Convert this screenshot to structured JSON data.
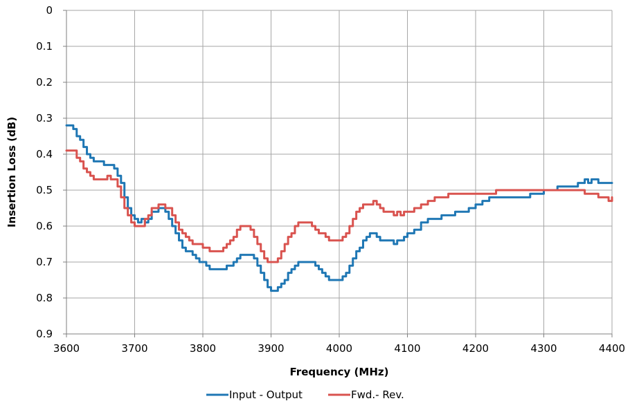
{
  "chart_data": {
    "type": "line",
    "title": "",
    "xlabel": "Frequency (MHz)",
    "ylabel": "Insertion Loss (dB)",
    "xlim": [
      3600,
      4400
    ],
    "ylim": [
      0,
      0.9
    ],
    "y_inverted": true,
    "grid": true,
    "legend_position": "bottom",
    "x_ticks": [
      "3600",
      "3700",
      "3800",
      "3900",
      "4000",
      "4100",
      "4200",
      "4300",
      "4400"
    ],
    "y_ticks": [
      "0",
      "0.1",
      "0.2",
      "0.3",
      "0.4",
      "0.5",
      "0.6",
      "0.7",
      "0.8",
      "0.9"
    ],
    "series": [
      {
        "name": "Input - Output",
        "color": "#1f77b4",
        "x": [
          3600,
          3605,
          3610,
          3615,
          3620,
          3625,
          3630,
          3635,
          3640,
          3645,
          3650,
          3655,
          3660,
          3665,
          3670,
          3675,
          3680,
          3685,
          3690,
          3695,
          3700,
          3705,
          3710,
          3715,
          3720,
          3725,
          3730,
          3735,
          3740,
          3745,
          3750,
          3755,
          3760,
          3765,
          3770,
          3775,
          3780,
          3785,
          3790,
          3795,
          3800,
          3805,
          3810,
          3815,
          3820,
          3825,
          3830,
          3835,
          3840,
          3845,
          3850,
          3855,
          3860,
          3865,
          3870,
          3875,
          3880,
          3885,
          3890,
          3895,
          3900,
          3905,
          3910,
          3915,
          3920,
          3925,
          3930,
          3935,
          3940,
          3945,
          3950,
          3955,
          3960,
          3965,
          3970,
          3975,
          3980,
          3985,
          3990,
          3995,
          4000,
          4005,
          4010,
          4015,
          4020,
          4025,
          4030,
          4035,
          4040,
          4045,
          4050,
          4055,
          4060,
          4065,
          4070,
          4075,
          4080,
          4085,
          4090,
          4095,
          4100,
          4110,
          4120,
          4130,
          4140,
          4150,
          4160,
          4170,
          4180,
          4190,
          4200,
          4210,
          4220,
          4230,
          4240,
          4250,
          4260,
          4270,
          4280,
          4290,
          4300,
          4310,
          4320,
          4330,
          4340,
          4350,
          4355,
          4360,
          4365,
          4370,
          4380,
          4390,
          4400
        ],
        "values": [
          0.32,
          0.32,
          0.33,
          0.35,
          0.36,
          0.38,
          0.4,
          0.41,
          0.42,
          0.42,
          0.42,
          0.43,
          0.43,
          0.43,
          0.44,
          0.46,
          0.48,
          0.52,
          0.55,
          0.57,
          0.58,
          0.59,
          0.58,
          0.59,
          0.58,
          0.56,
          0.56,
          0.55,
          0.55,
          0.56,
          0.58,
          0.6,
          0.62,
          0.64,
          0.66,
          0.67,
          0.67,
          0.68,
          0.69,
          0.7,
          0.7,
          0.71,
          0.72,
          0.72,
          0.72,
          0.72,
          0.72,
          0.71,
          0.71,
          0.7,
          0.69,
          0.68,
          0.68,
          0.68,
          0.68,
          0.69,
          0.71,
          0.73,
          0.75,
          0.77,
          0.78,
          0.78,
          0.77,
          0.76,
          0.75,
          0.73,
          0.72,
          0.71,
          0.7,
          0.7,
          0.7,
          0.7,
          0.7,
          0.71,
          0.72,
          0.73,
          0.74,
          0.75,
          0.75,
          0.75,
          0.75,
          0.74,
          0.73,
          0.71,
          0.69,
          0.67,
          0.66,
          0.64,
          0.63,
          0.62,
          0.62,
          0.63,
          0.64,
          0.64,
          0.64,
          0.64,
          0.65,
          0.64,
          0.64,
          0.63,
          0.62,
          0.61,
          0.59,
          0.58,
          0.58,
          0.57,
          0.57,
          0.56,
          0.56,
          0.55,
          0.54,
          0.53,
          0.52,
          0.52,
          0.52,
          0.52,
          0.52,
          0.52,
          0.51,
          0.51,
          0.5,
          0.5,
          0.49,
          0.49,
          0.49,
          0.48,
          0.48,
          0.47,
          0.48,
          0.47,
          0.48,
          0.48,
          0.48
        ]
      },
      {
        "name": "Fwd.- Rev.",
        "color": "#d9534f",
        "x": [
          3600,
          3605,
          3610,
          3615,
          3620,
          3625,
          3630,
          3635,
          3640,
          3645,
          3650,
          3655,
          3660,
          3665,
          3670,
          3675,
          3680,
          3685,
          3690,
          3695,
          3700,
          3705,
          3710,
          3715,
          3720,
          3725,
          3730,
          3735,
          3740,
          3745,
          3750,
          3755,
          3760,
          3765,
          3770,
          3775,
          3780,
          3785,
          3790,
          3795,
          3800,
          3805,
          3810,
          3815,
          3820,
          3825,
          3830,
          3835,
          3840,
          3845,
          3850,
          3855,
          3860,
          3865,
          3870,
          3875,
          3880,
          3885,
          3890,
          3895,
          3900,
          3905,
          3910,
          3915,
          3920,
          3925,
          3930,
          3935,
          3940,
          3945,
          3950,
          3955,
          3960,
          3965,
          3970,
          3975,
          3980,
          3985,
          3990,
          3995,
          4000,
          4005,
          4010,
          4015,
          4020,
          4025,
          4030,
          4035,
          4040,
          4045,
          4050,
          4055,
          4060,
          4065,
          4070,
          4075,
          4080,
          4085,
          4090,
          4095,
          4100,
          4110,
          4120,
          4130,
          4140,
          4150,
          4160,
          4170,
          4180,
          4190,
          4200,
          4210,
          4220,
          4230,
          4240,
          4250,
          4260,
          4270,
          4280,
          4290,
          4300,
          4310,
          4320,
          4330,
          4340,
          4350,
          4360,
          4370,
          4380,
          4385,
          4390,
          4395,
          4400
        ],
        "values": [
          0.39,
          0.39,
          0.39,
          0.41,
          0.42,
          0.44,
          0.45,
          0.46,
          0.47,
          0.47,
          0.47,
          0.47,
          0.46,
          0.47,
          0.47,
          0.49,
          0.52,
          0.55,
          0.57,
          0.59,
          0.6,
          0.6,
          0.6,
          0.58,
          0.57,
          0.55,
          0.55,
          0.54,
          0.54,
          0.55,
          0.55,
          0.57,
          0.59,
          0.61,
          0.62,
          0.63,
          0.64,
          0.65,
          0.65,
          0.65,
          0.66,
          0.66,
          0.67,
          0.67,
          0.67,
          0.67,
          0.66,
          0.65,
          0.64,
          0.63,
          0.61,
          0.6,
          0.6,
          0.6,
          0.61,
          0.63,
          0.65,
          0.67,
          0.69,
          0.7,
          0.7,
          0.7,
          0.69,
          0.67,
          0.65,
          0.63,
          0.62,
          0.6,
          0.59,
          0.59,
          0.59,
          0.59,
          0.6,
          0.61,
          0.62,
          0.62,
          0.63,
          0.64,
          0.64,
          0.64,
          0.64,
          0.63,
          0.62,
          0.6,
          0.58,
          0.56,
          0.55,
          0.54,
          0.54,
          0.54,
          0.53,
          0.54,
          0.55,
          0.56,
          0.56,
          0.56,
          0.57,
          0.56,
          0.57,
          0.56,
          0.56,
          0.55,
          0.54,
          0.53,
          0.52,
          0.52,
          0.51,
          0.51,
          0.51,
          0.51,
          0.51,
          0.51,
          0.51,
          0.5,
          0.5,
          0.5,
          0.5,
          0.5,
          0.5,
          0.5,
          0.5,
          0.5,
          0.5,
          0.5,
          0.5,
          0.5,
          0.51,
          0.51,
          0.52,
          0.52,
          0.52,
          0.53,
          0.52
        ]
      }
    ]
  }
}
